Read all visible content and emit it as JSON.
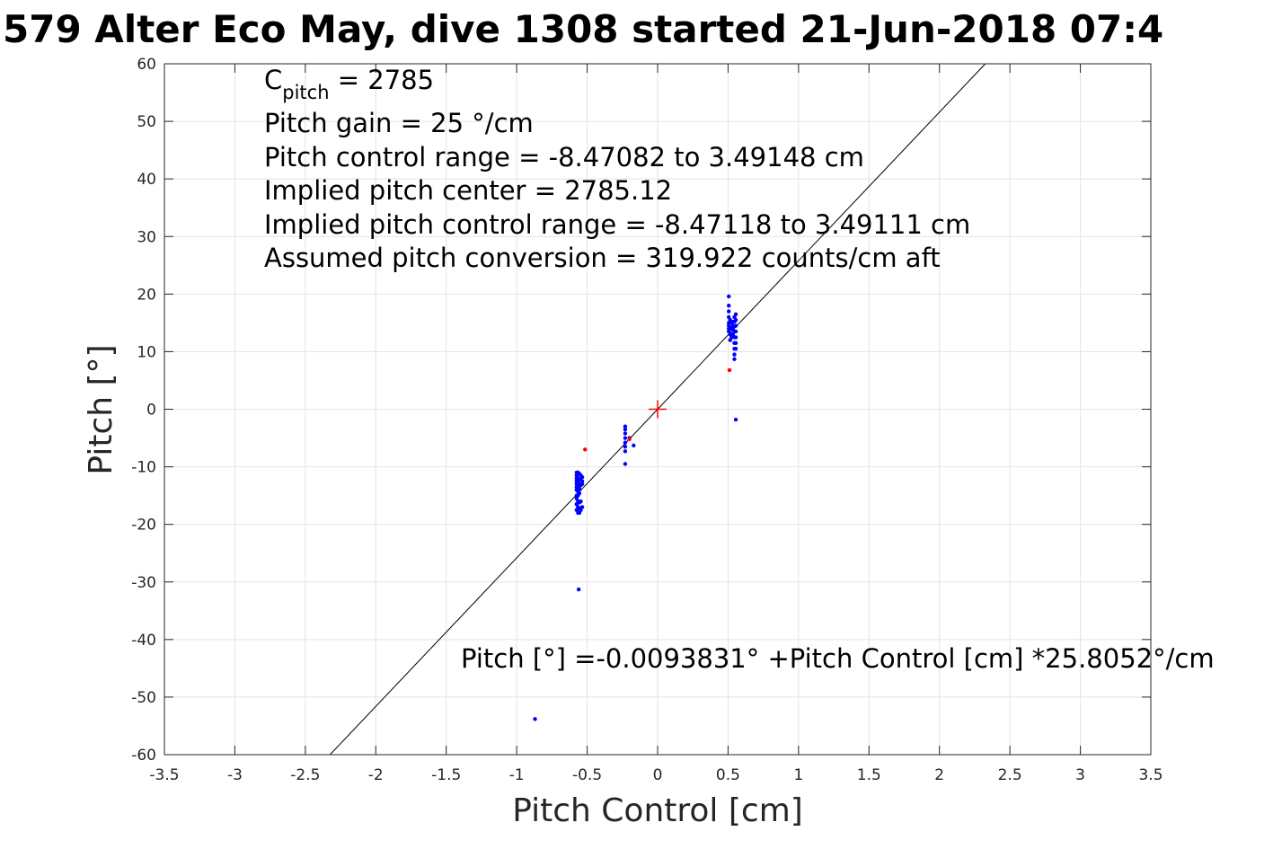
{
  "chart_data": {
    "type": "scatter",
    "title": "579 Alter Eco May, dive 1308 started 21-Jun-2018 07:4",
    "xlabel": "Pitch Control [cm]",
    "ylabel": "Pitch [°]",
    "xlim": [
      -3.5,
      3.5
    ],
    "ylim": [
      -60,
      60
    ],
    "x_ticks": [
      -3.5,
      -3,
      -2.5,
      -2,
      -1.5,
      -1,
      -0.5,
      0,
      0.5,
      1,
      1.5,
      2,
      2.5,
      3,
      3.5
    ],
    "x_tick_labels": [
      "-3.5",
      "-3",
      "-2.5",
      "-2",
      "-1.5",
      "-1",
      "-0.5",
      "0",
      "0.5",
      "1",
      "1.5",
      "2",
      "2.5",
      "3",
      "3.5"
    ],
    "y_ticks": [
      -60,
      -50,
      -40,
      -30,
      -20,
      -10,
      0,
      10,
      20,
      30,
      40,
      50,
      60
    ],
    "y_tick_labels": [
      "-60",
      "-50",
      "-40",
      "-30",
      "-20",
      "-10",
      "0",
      "10",
      "20",
      "30",
      "40",
      "50",
      "60"
    ],
    "grid": true,
    "annotations": {
      "c_pitch_main": "C",
      "c_pitch_sub": "pitch",
      "c_pitch_value": " = 2785",
      "lines": [
        "Pitch gain = 25 °/cm",
        "Pitch control range = -8.47082 to 3.49148 cm",
        "Implied pitch center = 2785.12",
        "Implied pitch control range = -8.47118 to 3.49111 cm",
        "Assumed pitch conversion = 319.922 counts/cm aft"
      ],
      "fit_equation": "Pitch [°] =-0.0093831° +Pitch Control [cm] *25.8052°/cm"
    },
    "fit_line": {
      "intercept": -0.0093831,
      "slope": 25.8052,
      "color": "#000000"
    },
    "center_marker": {
      "x": 0,
      "y": 0,
      "color": "#ff0000"
    },
    "series": [
      {
        "color": "#0000ff",
        "points": [
          [
            -0.575,
            -11
          ],
          [
            -0.575,
            -11.5
          ],
          [
            -0.575,
            -12
          ],
          [
            -0.575,
            -12.5
          ],
          [
            -0.575,
            -13
          ],
          [
            -0.575,
            -13.5
          ],
          [
            -0.575,
            -14
          ],
          [
            -0.575,
            -15
          ],
          [
            -0.575,
            -15.5
          ],
          [
            -0.575,
            -16.5
          ],
          [
            -0.575,
            -17.5
          ],
          [
            -0.565,
            -11
          ],
          [
            -0.565,
            -12
          ],
          [
            -0.565,
            -12.8
          ],
          [
            -0.565,
            -13.5
          ],
          [
            -0.565,
            -14.3
          ],
          [
            -0.565,
            -15
          ],
          [
            -0.565,
            -16
          ],
          [
            -0.565,
            -17
          ],
          [
            -0.565,
            -18
          ],
          [
            -0.555,
            -11.2
          ],
          [
            -0.555,
            -12.2
          ],
          [
            -0.555,
            -13
          ],
          [
            -0.555,
            -13.8
          ],
          [
            -0.555,
            -14.6
          ],
          [
            -0.555,
            -16.2
          ],
          [
            -0.555,
            -17.2
          ],
          [
            -0.555,
            -18
          ],
          [
            -0.545,
            -11.5
          ],
          [
            -0.545,
            -12.3
          ],
          [
            -0.545,
            -13.2
          ],
          [
            -0.545,
            -16
          ],
          [
            -0.545,
            -17.5
          ],
          [
            -0.535,
            -11.8
          ],
          [
            -0.535,
            -12.5
          ],
          [
            -0.535,
            -13
          ],
          [
            -0.535,
            -17
          ],
          [
            -0.56,
            -31.3
          ],
          [
            -0.23,
            -3
          ],
          [
            -0.23,
            -3.5
          ],
          [
            -0.23,
            -4.2
          ],
          [
            -0.23,
            -5
          ],
          [
            -0.23,
            -5.8
          ],
          [
            -0.23,
            -6.5
          ],
          [
            -0.23,
            -7.3
          ],
          [
            -0.23,
            -9.5
          ],
          [
            -0.2,
            -5
          ],
          [
            -0.17,
            -6.3
          ],
          [
            0.505,
            19.6
          ],
          [
            0.505,
            18
          ],
          [
            0.505,
            17
          ],
          [
            0.505,
            16
          ],
          [
            0.505,
            15
          ],
          [
            0.505,
            14.5
          ],
          [
            0.505,
            14
          ],
          [
            0.505,
            13.5
          ],
          [
            0.515,
            15.5
          ],
          [
            0.515,
            14.2
          ],
          [
            0.515,
            13
          ],
          [
            0.515,
            12
          ],
          [
            0.525,
            15
          ],
          [
            0.525,
            14
          ],
          [
            0.525,
            13
          ],
          [
            0.525,
            12.5
          ],
          [
            0.535,
            15.2
          ],
          [
            0.535,
            14.5
          ],
          [
            0.535,
            13.8
          ],
          [
            0.535,
            13
          ],
          [
            0.545,
            16
          ],
          [
            0.545,
            15.2
          ],
          [
            0.545,
            14.4
          ],
          [
            0.545,
            13.5
          ],
          [
            0.545,
            12.5
          ],
          [
            0.545,
            11.5
          ],
          [
            0.545,
            10.5
          ],
          [
            0.545,
            9.5
          ],
          [
            0.545,
            8.7
          ],
          [
            0.555,
            16.5
          ],
          [
            0.555,
            15.5
          ],
          [
            0.555,
            14.5
          ],
          [
            0.555,
            13.5
          ],
          [
            0.555,
            12.5
          ],
          [
            0.555,
            11.5
          ],
          [
            0.555,
            10.5
          ],
          [
            0.555,
            -1.8
          ],
          [
            -0.87,
            -53.8
          ]
        ]
      },
      {
        "color": "#ff0000",
        "points": [
          [
            -0.515,
            -7
          ],
          [
            0.51,
            6.8
          ],
          [
            -0.2,
            -5.2
          ]
        ]
      }
    ]
  }
}
